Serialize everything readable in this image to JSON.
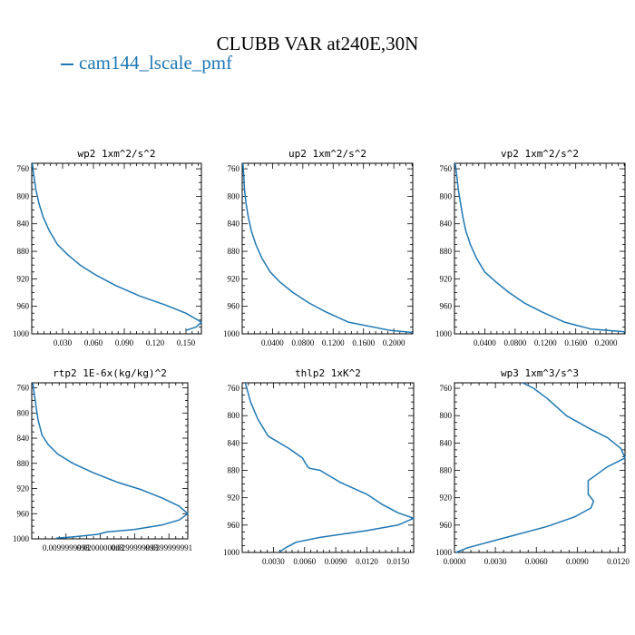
{
  "title": "CLUBB VAR at240E,30N",
  "legend": {
    "label": "cam144_lscale_pmf",
    "color": "#1f77b4"
  },
  "chart_data": [
    {
      "type": "line",
      "title": "wp2  1xm^2/s^2",
      "xlim": [
        0.0,
        0.165
      ],
      "ylim": [
        1000,
        752
      ],
      "y_inverted": true,
      "xticks": [
        0.03,
        0.06,
        0.09,
        0.12,
        0.15
      ],
      "xtick_labels": [
        "0.030",
        "0.060",
        "0.090",
        "0.120",
        "0.150"
      ],
      "yticks": [
        760,
        800,
        840,
        880,
        920,
        960,
        1000
      ],
      "ytick_labels": [
        "760",
        "800",
        "840",
        "880",
        "920",
        "960",
        "1000"
      ],
      "series": [
        {
          "x": [
            0.0005,
            0.002,
            0.004,
            0.007,
            0.011,
            0.017,
            0.025,
            0.035,
            0.047,
            0.063,
            0.082,
            0.105,
            0.13,
            0.15,
            0.165,
            0.16,
            0.15
          ],
          "y": [
            752,
            770,
            790,
            810,
            830,
            850,
            870,
            885,
            900,
            915,
            930,
            945,
            958,
            970,
            983,
            990,
            995
          ]
        }
      ]
    },
    {
      "type": "line",
      "title": "up2  1xm^2/s^2",
      "xlim": [
        0.0,
        0.225
      ],
      "ylim": [
        1000,
        752
      ],
      "y_inverted": true,
      "xticks": [
        0.04,
        0.08,
        0.12,
        0.16,
        0.2
      ],
      "xtick_labels": [
        "0.0400",
        "0.0800",
        "0.1200",
        "0.1600",
        "0.2000"
      ],
      "yticks": [
        760,
        800,
        840,
        880,
        920,
        960,
        1000
      ],
      "ytick_labels": [
        "760",
        "800",
        "840",
        "880",
        "920",
        "960",
        "1000"
      ],
      "series": [
        {
          "x": [
            0.001,
            0.002,
            0.003,
            0.005,
            0.008,
            0.012,
            0.018,
            0.026,
            0.037,
            0.05,
            0.067,
            0.088,
            0.11,
            0.14,
            0.195,
            0.225
          ],
          "y": [
            752,
            770,
            790,
            810,
            830,
            850,
            870,
            890,
            910,
            925,
            940,
            955,
            968,
            983,
            995,
            998
          ]
        }
      ]
    },
    {
      "type": "line",
      "title": "vp2  1xm^2/s^2",
      "xlim": [
        0.0,
        0.225
      ],
      "ylim": [
        1000,
        752
      ],
      "y_inverted": true,
      "xticks": [
        0.04,
        0.08,
        0.12,
        0.16,
        0.2
      ],
      "xtick_labels": [
        "0.0400",
        "0.0800",
        "0.1200",
        "0.1600",
        "0.2000"
      ],
      "yticks": [
        760,
        800,
        840,
        880,
        920,
        960,
        1000
      ],
      "ytick_labels": [
        "760",
        "800",
        "840",
        "880",
        "920",
        "960",
        "1000"
      ],
      "series": [
        {
          "x": [
            0.001,
            0.003,
            0.005,
            0.008,
            0.011,
            0.015,
            0.021,
            0.029,
            0.04,
            0.055,
            0.072,
            0.092,
            0.115,
            0.145,
            0.18,
            0.225
          ],
          "y": [
            752,
            770,
            790,
            810,
            830,
            850,
            870,
            890,
            910,
            925,
            940,
            955,
            968,
            983,
            993,
            997
          ]
        }
      ]
    },
    {
      "type": "line",
      "title": "rtp2  1E-6x(kg/kg)^2",
      "xlim": [
        0.0,
        0.0455
      ],
      "ylim": [
        1000,
        752
      ],
      "y_inverted": true,
      "xticks": [
        0.01,
        0.02,
        0.03,
        0.04
      ],
      "xtick_labels": [
        "0.0099999998",
        "0.0200000003",
        "0.0299999993",
        "0.0399999991"
      ],
      "yticks": [
        760,
        800,
        840,
        880,
        920,
        960,
        1000
      ],
      "ytick_labels": [
        "760",
        "800",
        "840",
        "880",
        "920",
        "960",
        "1000"
      ],
      "series": [
        {
          "x": [
            0.0003,
            0.001,
            0.0018,
            0.003,
            0.0048,
            0.0075,
            0.012,
            0.018,
            0.025,
            0.032,
            0.038,
            0.043,
            0.0455,
            0.043,
            0.038,
            0.03,
            0.022,
            0.019,
            0.012,
            0.007
          ],
          "y": [
            752,
            780,
            810,
            835,
            850,
            865,
            880,
            895,
            910,
            922,
            935,
            948,
            960,
            970,
            978,
            985,
            989,
            993,
            997,
            999
          ]
        }
      ]
    },
    {
      "type": "line",
      "title": "thlp2  1xK^2",
      "xlim": [
        0.0,
        0.0165
      ],
      "ylim": [
        1000,
        752
      ],
      "y_inverted": true,
      "xticks": [
        0.003,
        0.006,
        0.009,
        0.012,
        0.015
      ],
      "xtick_labels": [
        "0.0030",
        "0.0060",
        "0.0090",
        "0.0120",
        "0.0150"
      ],
      "yticks": [
        760,
        800,
        840,
        880,
        920,
        960,
        1000
      ],
      "ytick_labels": [
        "760",
        "800",
        "840",
        "880",
        "920",
        "960",
        "1000"
      ],
      "series": [
        {
          "x": [
            0.0003,
            0.0008,
            0.0015,
            0.0025,
            0.0045,
            0.0058,
            0.0063,
            0.0065,
            0.0075,
            0.0095,
            0.012,
            0.0135,
            0.015,
            0.0165,
            0.015,
            0.012,
            0.0075,
            0.0052,
            0.0042,
            0.0036
          ],
          "y": [
            752,
            780,
            805,
            830,
            848,
            862,
            875,
            877,
            880,
            898,
            915,
            930,
            942,
            950,
            960,
            968,
            978,
            985,
            993,
            999
          ]
        }
      ]
    },
    {
      "type": "line",
      "title": "wp3  1xm^3/s^3",
      "xlim": [
        0.0,
        0.0125
      ],
      "ylim": [
        1000,
        752
      ],
      "y_inverted": true,
      "xticks": [
        0.0,
        0.003,
        0.006,
        0.009,
        0.012
      ],
      "xtick_labels": [
        "0.0000",
        "0.0030",
        "0.0060",
        "0.0090",
        "0.0120"
      ],
      "yticks": [
        760,
        800,
        840,
        880,
        920,
        960,
        1000
      ],
      "ytick_labels": [
        "760",
        "800",
        "840",
        "880",
        "920",
        "960",
        "1000"
      ],
      "series": [
        {
          "x": [
            0.005,
            0.0058,
            0.0068,
            0.0082,
            0.01,
            0.0112,
            0.0122,
            0.0125,
            0.0112,
            0.0098,
            0.0098,
            0.0102,
            0.01,
            0.0088,
            0.0068,
            0.0038,
            0.001,
            0.0001
          ],
          "y": [
            752,
            760,
            775,
            800,
            820,
            832,
            848,
            862,
            875,
            895,
            915,
            925,
            935,
            948,
            962,
            978,
            993,
            1000
          ]
        }
      ]
    }
  ]
}
